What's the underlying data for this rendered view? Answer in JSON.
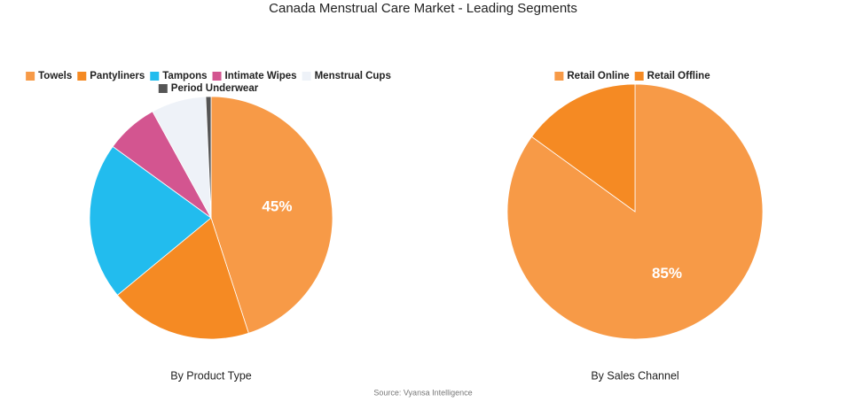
{
  "title": "Canada Menstrual Care Market - Leading Segments",
  "source": "Source: Vyansa Intelligence",
  "chart_data": [
    {
      "type": "pie",
      "subtitle": "By Product Type",
      "categories": [
        "Towels",
        "Pantyliners",
        "Tampons",
        "Intimate Wipes",
        "Menstrual Cups",
        "Period Underwear"
      ],
      "values": [
        45,
        19,
        21,
        7,
        7.3,
        0.7
      ],
      "value_labels": [
        "45%",
        null,
        null,
        null,
        null,
        null
      ],
      "colors": [
        "#f79a47",
        "#f58a23",
        "#22bcee",
        "#d35590",
        "#eef2f8",
        "#555555"
      ]
    },
    {
      "type": "pie",
      "subtitle": "By Sales Channel",
      "categories": [
        "Retail Online",
        "Retail Offline"
      ],
      "values": [
        85,
        15
      ],
      "value_labels": [
        "85%",
        null
      ],
      "colors": [
        "#f79a47",
        "#f58a23"
      ]
    }
  ]
}
